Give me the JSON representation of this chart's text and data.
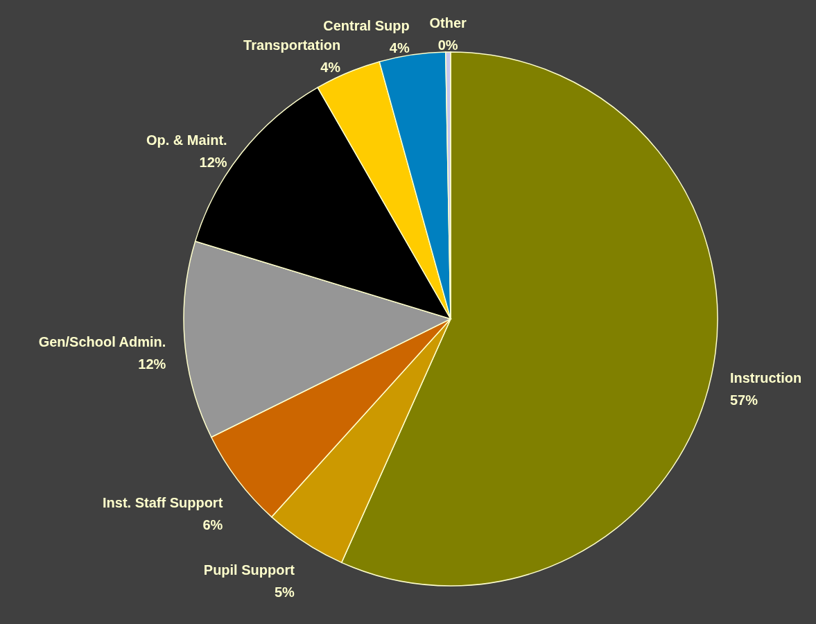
{
  "chart_data": {
    "type": "pie",
    "categories": [
      "Instruction",
      "Pupil Support",
      "Inst. Staff Support",
      "Gen/School Admin.",
      "Op. & Maint.",
      "Transportation",
      "Central Supp",
      "Other"
    ],
    "values": [
      56.7,
      5,
      6,
      12,
      12,
      4,
      4,
      0.3
    ],
    "value_labels": [
      "57%",
      "5%",
      "6%",
      "12%",
      "12%",
      "4%",
      "4%",
      "0%"
    ],
    "colors": [
      "#808000",
      "#cc9900",
      "#cc6600",
      "#969696",
      "#000000",
      "#ffcc00",
      "#0080c0",
      "#c8c8f0"
    ]
  }
}
